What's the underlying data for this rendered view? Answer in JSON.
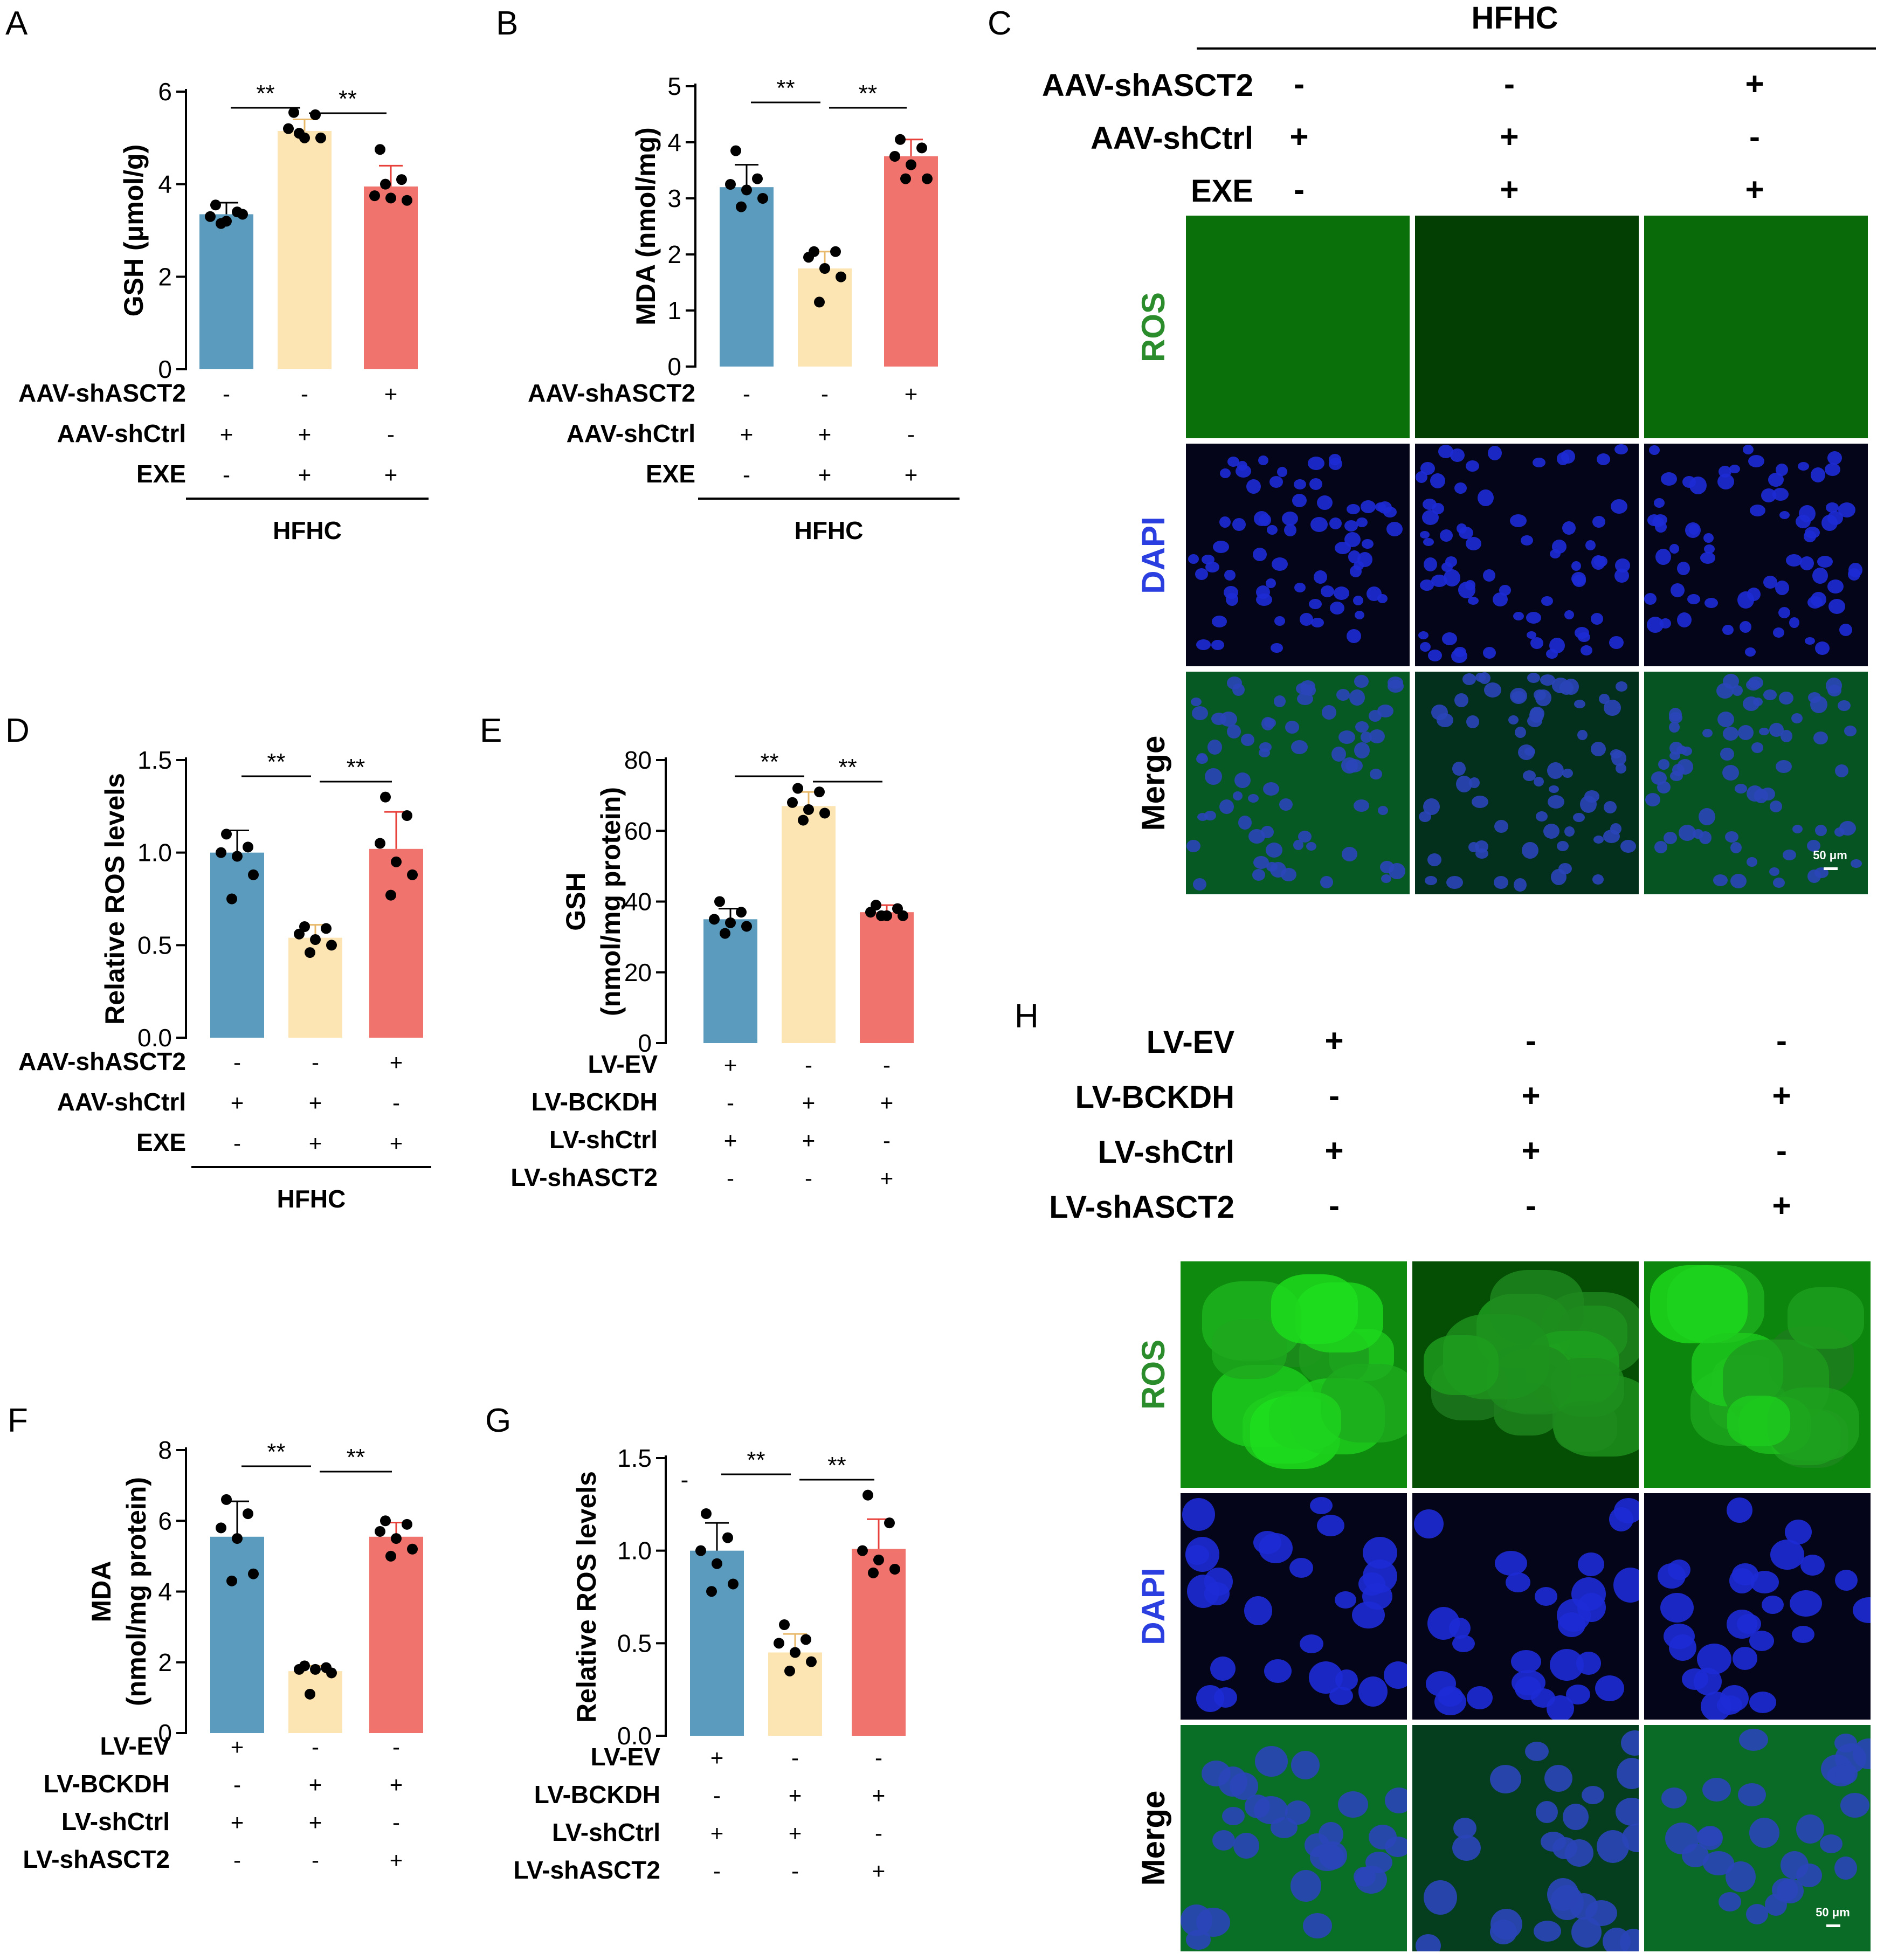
{
  "panels": {
    "A": "A",
    "B": "B",
    "C": "C",
    "D": "D",
    "E": "E",
    "F": "F",
    "G": "G",
    "H": "H"
  },
  "colors": {
    "blue": "#5b9bbd",
    "yellow": "#fde5b3",
    "red": "#f0746d",
    "green_text": "#2a8c2a",
    "blue_text": "#2b3fe0"
  },
  "signif": "**",
  "hfhc": "HFHC",
  "chart_data": [
    {
      "panel": "A",
      "type": "bar",
      "ylabel": "GSH (μmol/g)",
      "ylim": [
        0,
        6
      ],
      "yticks": [
        0,
        2,
        4,
        6
      ],
      "values": [
        3.35,
        5.15,
        3.95
      ],
      "errors": [
        0.25,
        0.25,
        0.45
      ],
      "points": [
        [
          3.55,
          3.4,
          3.3,
          3.2,
          3.35,
          3.15
        ],
        [
          5.55,
          5.5,
          5.2,
          5.0,
          5.0,
          5.1
        ],
        [
          4.75,
          4.1,
          3.75,
          3.7,
          3.65,
          4.0
        ]
      ],
      "brackets": [
        [
          0,
          1,
          "**"
        ],
        [
          1,
          2,
          "**"
        ]
      ],
      "conditions": [
        {
          "label": "AAV-shASCT2",
          "signs": [
            "-",
            "-",
            "+"
          ]
        },
        {
          "label": "AAV-shCtrl",
          "signs": [
            "+",
            "+",
            "-"
          ]
        },
        {
          "label": "EXE",
          "signs": [
            "-",
            "+",
            "+"
          ]
        }
      ],
      "group": "HFHC"
    },
    {
      "panel": "B",
      "type": "bar",
      "ylabel": "MDA (nmol/mg)",
      "ylim": [
        0,
        5
      ],
      "yticks": [
        0,
        1,
        2,
        3,
        4,
        5
      ],
      "values": [
        3.2,
        1.75,
        3.75
      ],
      "errors": [
        0.4,
        0.3,
        0.3
      ],
      "points": [
        [
          3.85,
          3.35,
          3.25,
          3.15,
          3.0,
          2.85
        ],
        [
          2.05,
          2.05,
          1.95,
          1.75,
          1.6,
          1.15
        ],
        [
          4.05,
          3.9,
          3.75,
          3.6,
          3.35,
          3.35
        ]
      ],
      "brackets": [
        [
          0,
          1,
          "**"
        ],
        [
          1,
          2,
          "**"
        ]
      ],
      "conditions": [
        {
          "label": "AAV-shASCT2",
          "signs": [
            "-",
            "-",
            "+"
          ]
        },
        {
          "label": "AAV-shCtrl",
          "signs": [
            "+",
            "+",
            "-"
          ]
        },
        {
          "label": "EXE",
          "signs": [
            "-",
            "+",
            "+"
          ]
        }
      ],
      "group": "HFHC"
    },
    {
      "panel": "D",
      "type": "bar",
      "ylabel": "Relative ROS levels",
      "ylim": [
        0,
        1.5
      ],
      "yticks": [
        "0.0",
        "0.5",
        "1.0",
        "1.5"
      ],
      "values": [
        1.0,
        0.54,
        1.02
      ],
      "errors": [
        0.12,
        0.07,
        0.2
      ],
      "points": [
        [
          1.1,
          1.03,
          1.0,
          0.98,
          0.88,
          0.75
        ],
        [
          0.6,
          0.59,
          0.56,
          0.53,
          0.5,
          0.46
        ],
        [
          1.3,
          1.2,
          1.05,
          0.95,
          0.88,
          0.77
        ]
      ],
      "brackets": [
        [
          0,
          1,
          "**"
        ],
        [
          1,
          2,
          "**"
        ]
      ],
      "conditions": [
        {
          "label": "AAV-shASCT2",
          "signs": [
            "-",
            "-",
            "+"
          ]
        },
        {
          "label": "AAV-shCtrl",
          "signs": [
            "+",
            "+",
            "-"
          ]
        },
        {
          "label": "EXE",
          "signs": [
            "-",
            "+",
            "+"
          ]
        }
      ],
      "group": "HFHC"
    },
    {
      "panel": "E",
      "type": "bar",
      "ylabel": "GSH",
      "ylabel2": "(nmol/mg protein)",
      "ylim": [
        0,
        80
      ],
      "yticks": [
        0,
        20,
        40,
        60,
        80
      ],
      "values": [
        35,
        67,
        37
      ],
      "errors": [
        3,
        4,
        2
      ],
      "points": [
        [
          40,
          37,
          35,
          34,
          33,
          31
        ],
        [
          72,
          71,
          68,
          66,
          65,
          63
        ],
        [
          39,
          38,
          37,
          36,
          36,
          36
        ]
      ],
      "brackets": [
        [
          0,
          1,
          "**"
        ],
        [
          1,
          2,
          "**"
        ]
      ],
      "conditions": [
        {
          "label": "LV-EV",
          "signs": [
            "+",
            "-",
            "-"
          ]
        },
        {
          "label": "LV-BCKDH",
          "signs": [
            "-",
            "+",
            "+"
          ]
        },
        {
          "label": "LV-shCtrl",
          "signs": [
            "+",
            "+",
            "-"
          ]
        },
        {
          "label": "LV-shASCT2",
          "signs": [
            "-",
            "-",
            "+"
          ]
        }
      ],
      "group": ""
    },
    {
      "panel": "F",
      "type": "bar",
      "ylabel": "MDA",
      "ylabel2": "(nmol/mg protein)",
      "ylim": [
        0,
        8
      ],
      "yticks": [
        0,
        2,
        4,
        6,
        8
      ],
      "values": [
        5.55,
        1.75,
        5.55
      ],
      "errors": [
        1.0,
        0.15,
        0.4
      ],
      "points": [
        [
          6.6,
          6.2,
          5.8,
          5.5,
          4.5,
          4.3
        ],
        [
          1.9,
          1.85,
          1.8,
          1.8,
          1.7,
          1.1
        ],
        [
          6.0,
          5.9,
          5.7,
          5.5,
          5.2,
          5.0
        ]
      ],
      "brackets": [
        [
          0,
          1,
          "**"
        ],
        [
          1,
          2,
          "**"
        ]
      ],
      "conditions": [
        {
          "label": "LV-EV",
          "signs": [
            "+",
            "-",
            "-"
          ]
        },
        {
          "label": "LV-BCKDH",
          "signs": [
            "-",
            "+",
            "+"
          ]
        },
        {
          "label": "LV-shCtrl",
          "signs": [
            "+",
            "+",
            "-"
          ]
        },
        {
          "label": "LV-shASCT2",
          "signs": [
            "-",
            "-",
            "+"
          ]
        }
      ],
      "group": ""
    },
    {
      "panel": "G",
      "type": "bar",
      "ylabel": "Relative ROS levels",
      "ylim": [
        0,
        1.5
      ],
      "yticks": [
        "0.0",
        "0.5",
        "1.0",
        "1.5"
      ],
      "values": [
        1.0,
        0.45,
        1.01
      ],
      "errors": [
        0.15,
        0.1,
        0.16
      ],
      "points": [
        [
          1.2,
          1.07,
          1.0,
          0.93,
          0.82,
          0.78
        ],
        [
          0.6,
          0.52,
          0.5,
          0.45,
          0.4,
          0.35
        ],
        [
          1.3,
          1.15,
          1.0,
          0.95,
          0.9,
          0.88
        ]
      ],
      "brackets": [
        [
          0,
          1,
          "**"
        ],
        [
          1,
          2,
          "**"
        ]
      ],
      "conditions": [
        {
          "label": "LV-EV",
          "signs": [
            "+",
            "-",
            "-"
          ]
        },
        {
          "label": "LV-BCKDH",
          "signs": [
            "-",
            "+",
            "+"
          ]
        },
        {
          "label": "LV-shCtrl",
          "signs": [
            "+",
            "+",
            "-"
          ]
        },
        {
          "label": "LV-shASCT2",
          "signs": [
            "-",
            "-",
            "+"
          ]
        }
      ],
      "group": ""
    }
  ],
  "image_panels": {
    "C": {
      "title": "HFHC",
      "conditions": [
        {
          "label": "AAV-shASCT2",
          "signs": [
            "-",
            "-",
            "+"
          ]
        },
        {
          "label": "AAV-shCtrl",
          "signs": [
            "+",
            "+",
            "-"
          ]
        },
        {
          "label": "EXE",
          "signs": [
            "-",
            "+",
            "+"
          ]
        }
      ],
      "rows": [
        "ROS",
        "DAPI",
        "Merge"
      ],
      "scale_bar": "50 μm"
    },
    "H": {
      "conditions": [
        {
          "label": "LV-EV",
          "signs": [
            "+",
            "-",
            "-"
          ]
        },
        {
          "label": "LV-BCKDH",
          "signs": [
            "-",
            "+",
            "+"
          ]
        },
        {
          "label": "LV-shCtrl",
          "signs": [
            "+",
            "+",
            "-"
          ]
        },
        {
          "label": "LV-shASCT2",
          "signs": [
            "-",
            "-",
            "+"
          ]
        }
      ],
      "rows": [
        "ROS",
        "DAPI",
        "Merge"
      ],
      "scale_bar": "50 μm"
    }
  }
}
